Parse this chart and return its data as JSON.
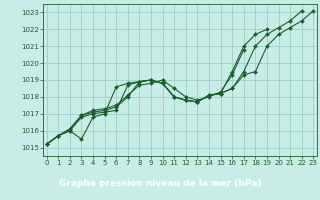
{
  "xlabel": "Graphe pression niveau de la mer (hPa)",
  "ylim": [
    1014.5,
    1023.5
  ],
  "xlim": [
    -0.3,
    23.3
  ],
  "yticks": [
    1015,
    1016,
    1017,
    1018,
    1019,
    1020,
    1021,
    1022,
    1023
  ],
  "xticks": [
    0,
    1,
    2,
    3,
    4,
    5,
    6,
    7,
    8,
    9,
    10,
    11,
    12,
    13,
    14,
    15,
    16,
    17,
    18,
    19,
    20,
    21,
    22,
    23
  ],
  "bg_color": "#c8ece6",
  "grid_color": "#a0d4cc",
  "line_color": "#1a5e2a",
  "footer_bg": "#2d7a3a",
  "footer_text_color": "#ffffff",
  "series": [
    [
      1015.2,
      1015.7,
      1016.0,
      1015.5,
      1016.8,
      1017.0,
      1018.6,
      1018.8,
      1018.9,
      1019.0,
      1018.8,
      1018.0,
      1017.8,
      1017.7,
      1018.1,
      1018.2,
      1018.5,
      1019.3,
      1019.5,
      1021.0,
      1021.7,
      1022.1,
      1022.5,
      1023.1
    ],
    [
      1015.2,
      1015.7,
      1016.0,
      1016.8,
      1017.0,
      1017.1,
      1017.2,
      1018.7,
      1018.9,
      1019.0,
      1018.8,
      1018.0,
      1017.8,
      1017.7,
      1018.1,
      1018.2,
      1018.5,
      1019.5,
      1021.0,
      1021.7,
      1022.1,
      1022.5,
      1023.1,
      null
    ],
    [
      1015.2,
      1015.7,
      1016.1,
      1016.9,
      1017.1,
      1017.2,
      1017.4,
      1018.0,
      1018.9,
      1019.0,
      1018.8,
      1018.0,
      1017.8,
      1017.7,
      1018.1,
      1018.2,
      1019.5,
      1021.0,
      1021.7,
      1022.0,
      null,
      null,
      null,
      null
    ],
    [
      1015.2,
      1015.7,
      1016.1,
      1016.9,
      1017.2,
      1017.3,
      1017.5,
      1018.1,
      1018.7,
      1018.8,
      1019.0,
      1018.5,
      1018.0,
      1017.8,
      1018.0,
      1018.3,
      1019.3,
      1020.8,
      null,
      null,
      null,
      null,
      null,
      null
    ]
  ]
}
